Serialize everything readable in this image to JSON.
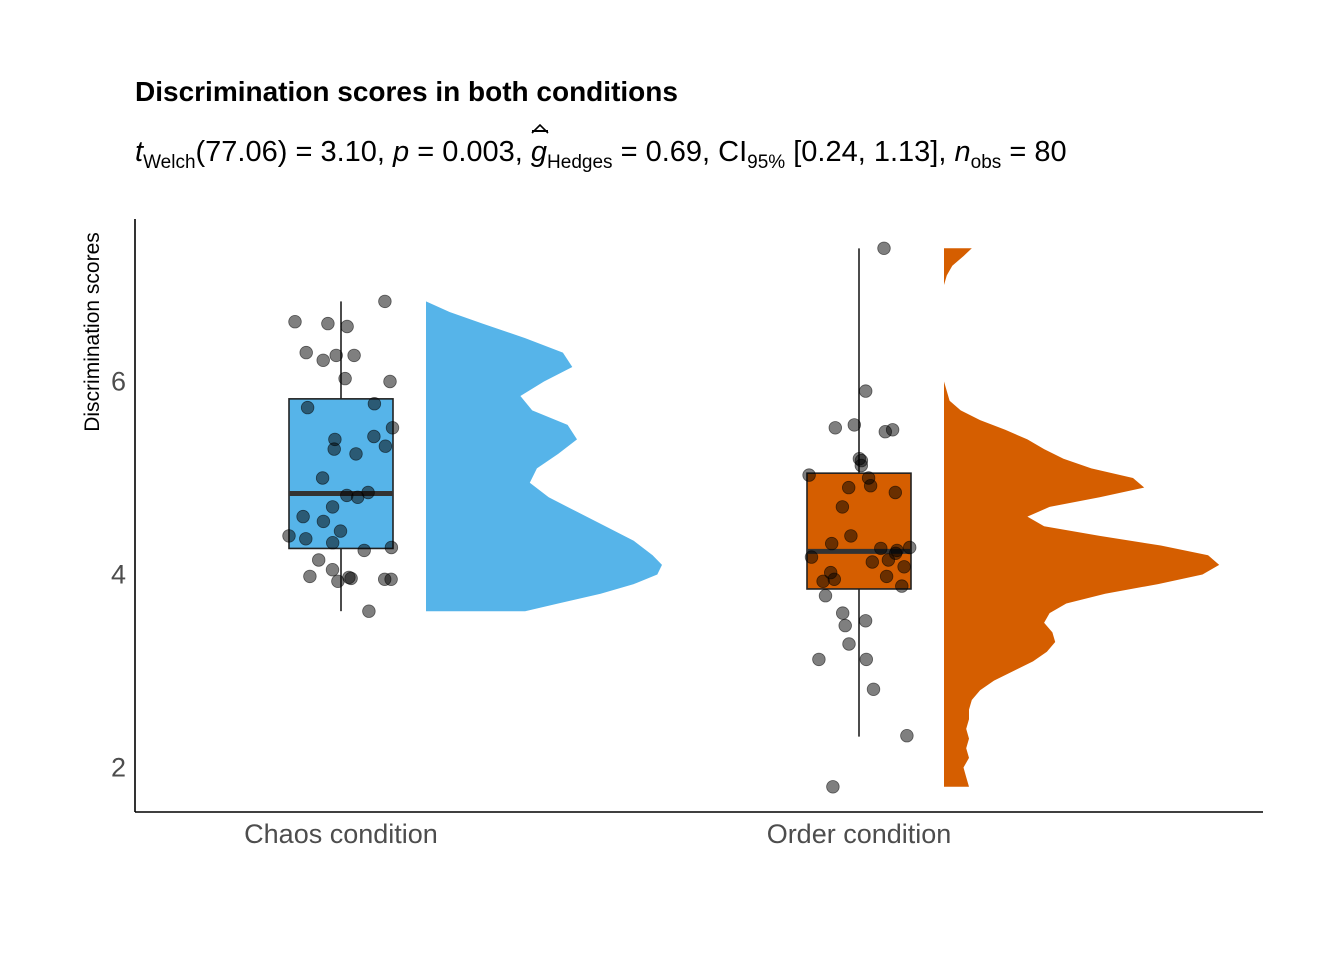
{
  "chart_data": {
    "type": "raincloud",
    "title": "Discrimination scores in both conditions",
    "subtitle": {
      "t_symbol": "t",
      "t_sub": "Welch",
      "t_value": "(77.06) = 3.10, ",
      "p_symbol": "p",
      "p_value": " = 0.003, ",
      "g_symbol": "g",
      "g_sub": "Hedges",
      "g_value": " = 0.69, CI",
      "ci_sub": "95%",
      "ci_value": " [0.24, 1.13], ",
      "n_symbol": "n",
      "n_sub": "obs",
      "n_value": " = 80"
    },
    "xlabel": "",
    "ylabel": "Discrimination scores",
    "categories": [
      "Chaos condition",
      "Order condition"
    ],
    "ylim": [
      1.55,
      7.7
    ],
    "yticks": [
      2,
      4,
      6
    ],
    "grid": false,
    "colors": {
      "Chaos condition": "#56B4E9",
      "Order condition": "#D55E00"
    },
    "boxplots": [
      {
        "category": "Chaos condition",
        "min": 3.62,
        "q1": 4.27,
        "median": 4.84,
        "q3": 5.82,
        "max": 6.83
      },
      {
        "category": "Order condition",
        "min": 2.32,
        "q1": 3.85,
        "median": 4.24,
        "q3": 5.05,
        "max": 7.38
      }
    ],
    "points": [
      {
        "category": "Chaos condition",
        "values": [
          6.83,
          6.62,
          6.57,
          6.6,
          6.27,
          6.27,
          6.3,
          6.22,
          6.03,
          6.0,
          5.77,
          5.73,
          5.52,
          5.43,
          5.4,
          5.33,
          5.3,
          5.25,
          5.0,
          4.85,
          4.82,
          4.8,
          4.7,
          4.6,
          4.55,
          4.45,
          4.4,
          4.37,
          4.33,
          4.28,
          4.25,
          4.15,
          4.05,
          3.98,
          3.97,
          3.95,
          3.95,
          3.93,
          3.62,
          3.96
        ]
      },
      {
        "category": "Order condition",
        "values": [
          7.38,
          5.9,
          5.55,
          5.52,
          5.5,
          5.48,
          5.2,
          5.18,
          5.13,
          5.03,
          5.0,
          4.92,
          4.9,
          4.85,
          4.7,
          4.4,
          4.32,
          4.28,
          4.27,
          4.25,
          4.22,
          4.18,
          4.13,
          4.08,
          4.02,
          3.98,
          3.93,
          3.88,
          3.78,
          3.6,
          3.52,
          3.47,
          3.28,
          3.12,
          3.12,
          2.81,
          2.33,
          1.8,
          3.95,
          4.15
        ]
      }
    ],
    "densities": [
      {
        "category": "Chaos condition",
        "y": [
          3.62,
          3.7,
          3.8,
          3.9,
          4.0,
          4.1,
          4.2,
          4.35,
          4.5,
          4.65,
          4.8,
          4.95,
          5.1,
          5.25,
          5.4,
          5.55,
          5.7,
          5.85,
          6.0,
          6.15,
          6.3,
          6.45,
          6.6,
          6.72,
          6.83
        ],
        "density": [
          0.42,
          0.56,
          0.74,
          0.88,
          0.98,
          1.0,
          0.96,
          0.88,
          0.76,
          0.64,
          0.52,
          0.44,
          0.47,
          0.56,
          0.64,
          0.6,
          0.45,
          0.4,
          0.5,
          0.62,
          0.58,
          0.42,
          0.24,
          0.1,
          0.0
        ]
      },
      {
        "category": "Order condition",
        "y": [
          1.8,
          1.9,
          2.0,
          2.1,
          2.2,
          2.3,
          2.4,
          2.5,
          2.6,
          2.7,
          2.8,
          2.9,
          3.0,
          3.1,
          3.2,
          3.3,
          3.4,
          3.5,
          3.6,
          3.7,
          3.8,
          3.9,
          4.0,
          4.1,
          4.2,
          4.3,
          4.4,
          4.5,
          4.6,
          4.7,
          4.8,
          4.9,
          5.0,
          5.1,
          5.2,
          5.3,
          5.4,
          5.5,
          5.6,
          5.7,
          5.8,
          5.9,
          6.0,
          6.2,
          6.4,
          6.6,
          6.8,
          7.0,
          7.1,
          7.2,
          7.3,
          7.38
        ],
        "density": [
          0.09,
          0.08,
          0.07,
          0.09,
          0.08,
          0.09,
          0.08,
          0.09,
          0.09,
          0.1,
          0.13,
          0.18,
          0.25,
          0.32,
          0.37,
          0.4,
          0.39,
          0.36,
          0.38,
          0.44,
          0.58,
          0.77,
          0.93,
          0.99,
          0.95,
          0.78,
          0.56,
          0.36,
          0.3,
          0.38,
          0.56,
          0.72,
          0.68,
          0.53,
          0.43,
          0.36,
          0.3,
          0.22,
          0.13,
          0.06,
          0.02,
          0.01,
          0.0,
          0.0,
          0.0,
          0.0,
          0.0,
          0.0,
          0.01,
          0.03,
          0.07,
          0.1
        ]
      }
    ]
  }
}
